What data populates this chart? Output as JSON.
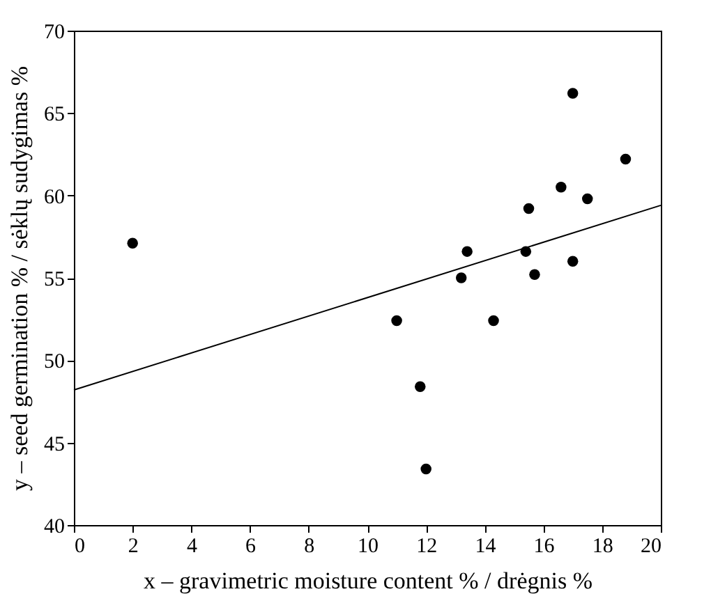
{
  "chart_data": {
    "type": "scatter",
    "xlabel": "x – gravimetric moisture content % / drėgnis %",
    "ylabel": "y – seed germination % / sėklų sudygimas %",
    "xlim": [
      0,
      20
    ],
    "ylim": [
      40,
      70
    ],
    "xticks": [
      0,
      2,
      4,
      6,
      8,
      10,
      12,
      14,
      16,
      18,
      20
    ],
    "yticks": [
      40,
      45,
      50,
      55,
      60,
      65,
      70
    ],
    "series": [
      {
        "color": "#000000",
        "marker": "circle",
        "x": [
          2,
          11,
          11.8,
          12,
          13.2,
          13.4,
          14.3,
          15.4,
          15.5,
          15.7,
          16.6,
          17,
          17,
          17.5,
          18.8
        ],
        "values": [
          57.1,
          52.4,
          48.4,
          43.4,
          55.0,
          56.6,
          52.4,
          56.6,
          59.2,
          55.2,
          60.5,
          66.2,
          56.0,
          59.8,
          62.2
        ]
      },
      {
        "type": "line",
        "color": "#000000",
        "marker": "none",
        "line_style": "solid",
        "x": [
          0,
          20
        ],
        "values": [
          48.2,
          59.4
        ]
      }
    ]
  }
}
